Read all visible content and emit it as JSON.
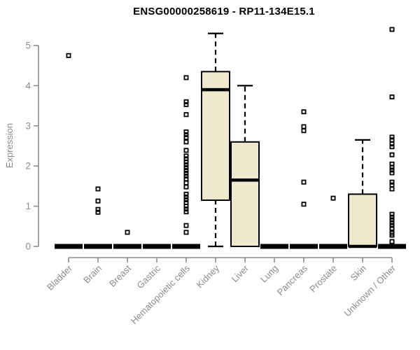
{
  "chart_data": {
    "type": "boxplot",
    "title": "ENSG00000258619 - RP11-134E15.1",
    "ylabel": "Expression",
    "xlabel": "",
    "ylim": [
      0,
      5
    ],
    "yticks": [
      0,
      1,
      2,
      3,
      4,
      5
    ],
    "grid": false,
    "legend": "none",
    "colors": {
      "box_fill": "#EEE8CD",
      "box_stroke": "#000000",
      "median": "#000000",
      "whisker": "#000000",
      "outlier": "#000000",
      "axis": "#8C8C8C",
      "tick_label": "#8C8C8C",
      "title": "#000000"
    },
    "categories": [
      "Bladder",
      "Brain",
      "Breast",
      "Gastric",
      "Hematopoietic cells",
      "Kidney",
      "Liver",
      "Lung",
      "Pancreas",
      "Prostate",
      "Skin",
      "Unknown / Other"
    ],
    "series": [
      {
        "name": "Bladder",
        "whisker_low": 0,
        "q1": 0,
        "median": 0,
        "q3": 0,
        "whisker_high": 0,
        "outliers": [
          4.75
        ]
      },
      {
        "name": "Brain",
        "whisker_low": 0,
        "q1": 0,
        "median": 0,
        "q3": 0,
        "whisker_high": 0,
        "outliers": [
          1.43,
          1.13,
          0.92,
          0.85
        ]
      },
      {
        "name": "Breast",
        "whisker_low": 0,
        "q1": 0,
        "median": 0,
        "q3": 0,
        "whisker_high": 0,
        "outliers": [
          0.35
        ]
      },
      {
        "name": "Gastric",
        "whisker_low": 0,
        "q1": 0,
        "median": 0,
        "q3": 0,
        "whisker_high": 0,
        "outliers": []
      },
      {
        "name": "Hematopoietic cells",
        "whisker_low": 0,
        "q1": 0,
        "median": 0,
        "q3": 0,
        "whisker_high": 0,
        "outliers": [
          4.2,
          3.6,
          3.53,
          3.28,
          2.85,
          2.78,
          2.71,
          2.6,
          2.39,
          2.25,
          2.18,
          2.1,
          2.03,
          1.96,
          1.89,
          1.82,
          1.75,
          1.68,
          1.58,
          1.48,
          1.3,
          1.23,
          1.16,
          1.09,
          1.0,
          0.93,
          0.86,
          0.52,
          0.35
        ]
      },
      {
        "name": "Kidney",
        "whisker_low": 0,
        "q1": 1.15,
        "median": 3.9,
        "q3": 4.35,
        "whisker_high": 5.3,
        "outliers": []
      },
      {
        "name": "Liver",
        "whisker_low": 0,
        "q1": 0,
        "median": 1.65,
        "q3": 2.6,
        "whisker_high": 4.0,
        "outliers": []
      },
      {
        "name": "Lung",
        "whisker_low": 0,
        "q1": 0,
        "median": 0,
        "q3": 0,
        "whisker_high": 0,
        "outliers": []
      },
      {
        "name": "Pancreas",
        "whisker_low": 0,
        "q1": 0,
        "median": 0,
        "q3": 0,
        "whisker_high": 0,
        "outliers": [
          3.35,
          2.98,
          2.88,
          1.6,
          1.05
        ]
      },
      {
        "name": "Prostate",
        "whisker_low": 0,
        "q1": 0,
        "median": 0,
        "q3": 0,
        "whisker_high": 0,
        "outliers": [
          1.2
        ]
      },
      {
        "name": "Skin",
        "whisker_low": 0,
        "q1": 0,
        "median": 0,
        "q3": 1.3,
        "whisker_high": 2.65,
        "outliers": []
      },
      {
        "name": "Unknown / Other",
        "whisker_low": 0,
        "q1": 0,
        "median": 0,
        "q3": 0,
        "whisker_high": 0,
        "outliers": [
          5.4,
          3.72,
          2.72,
          2.65,
          2.55,
          2.48,
          2.28,
          2.05,
          1.97,
          1.9,
          1.83,
          1.6,
          1.53,
          1.43,
          0.8,
          0.73,
          0.66,
          0.59,
          0.52,
          0.45,
          0.33,
          0.28,
          0.12
        ]
      }
    ]
  }
}
